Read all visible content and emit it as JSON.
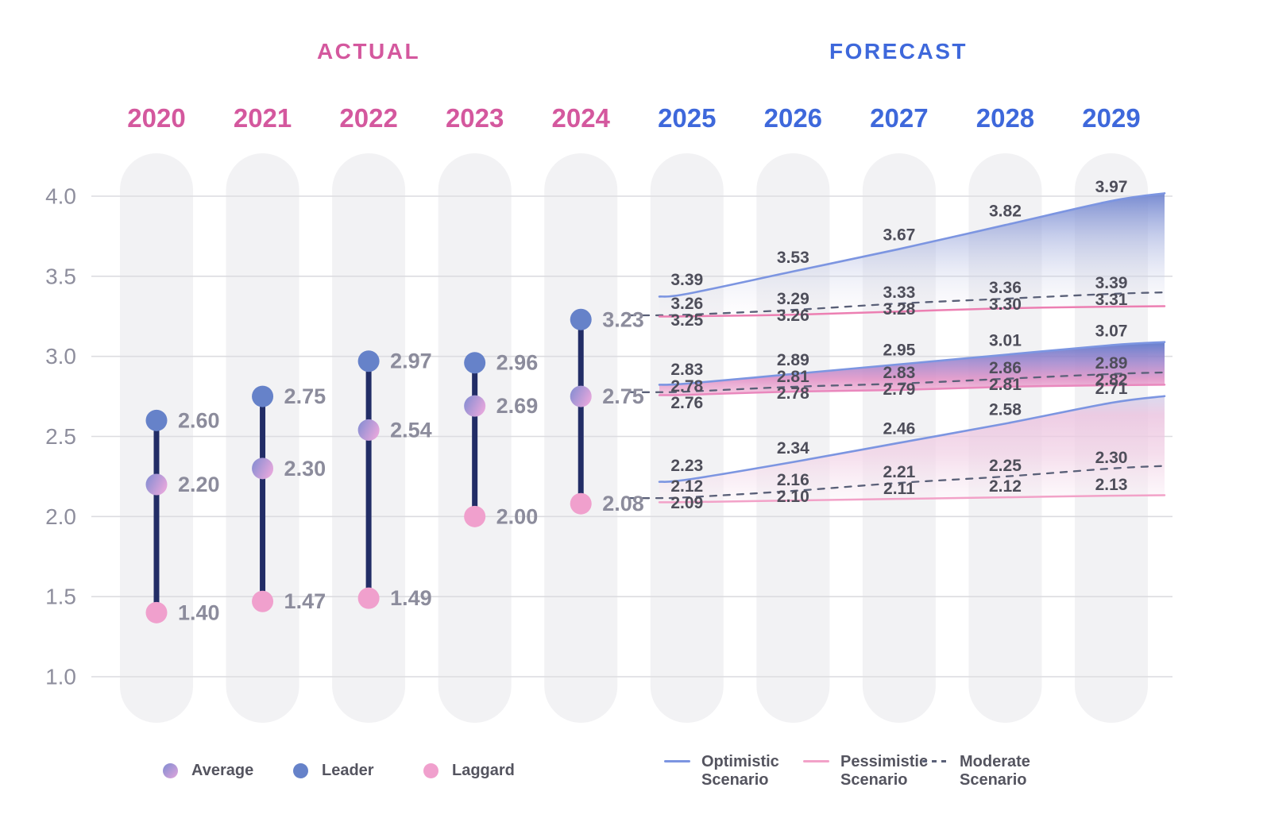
{
  "header": {
    "actual_label": "ACTUAL",
    "forecast_label": "FORECAST"
  },
  "y_axis": {
    "ticks": [
      "4.0",
      "3.5",
      "3.0",
      "2.5",
      "2.0",
      "1.5",
      "1.0"
    ]
  },
  "chart_data": {
    "type": "combo-dumbbell-and-forecast-bands",
    "title": "",
    "ylim": [
      1.0,
      4.0
    ],
    "grid": true,
    "actual": {
      "years": [
        "2020",
        "2021",
        "2022",
        "2023",
        "2024"
      ],
      "series": [
        {
          "name": "Leader",
          "values": [
            2.6,
            2.75,
            2.97,
            2.96,
            3.23
          ]
        },
        {
          "name": "Average",
          "values": [
            2.2,
            2.3,
            2.54,
            2.69,
            2.75
          ]
        },
        {
          "name": "Laggard",
          "values": [
            1.4,
            1.47,
            1.49,
            2.0,
            2.08
          ]
        }
      ]
    },
    "forecast": {
      "years": [
        "2025",
        "2026",
        "2027",
        "2028",
        "2029"
      ],
      "groups": [
        {
          "name": "Leader",
          "optimistic": [
            3.39,
            3.53,
            3.67,
            3.82,
            3.97
          ],
          "moderate": [
            3.26,
            3.29,
            3.33,
            3.36,
            3.39
          ],
          "pessimistic": [
            3.25,
            3.26,
            3.28,
            3.3,
            3.31
          ]
        },
        {
          "name": "Average",
          "optimistic": [
            2.83,
            2.89,
            2.95,
            3.01,
            3.07
          ],
          "moderate": [
            2.78,
            2.81,
            2.83,
            2.86,
            2.89
          ],
          "pessimistic": [
            2.76,
            2.78,
            2.79,
            2.81,
            2.82
          ]
        },
        {
          "name": "Laggard",
          "optimistic": [
            2.23,
            2.34,
            2.46,
            2.58,
            2.71
          ],
          "moderate": [
            2.12,
            2.16,
            2.21,
            2.25,
            2.3
          ],
          "pessimistic": [
            2.09,
            2.1,
            2.11,
            2.12,
            2.13
          ]
        }
      ]
    }
  },
  "legend": {
    "dot_items": [
      {
        "label": "Average",
        "swatch": "average-dot"
      },
      {
        "label": "Leader",
        "swatch": "leader-dot"
      },
      {
        "label": "Laggard",
        "swatch": "laggard-dot"
      }
    ],
    "scenario_items": [
      {
        "label_line1": "Optimistic",
        "label_line2": "Scenario",
        "swatch": "optimistic-line"
      },
      {
        "label_line1": "Pessimistic",
        "label_line2": "Scenario",
        "swatch": "pessimistic-line"
      },
      {
        "label_line1": "Moderate",
        "label_line2": "Scenario",
        "swatch": "moderate-line"
      }
    ]
  },
  "colors": {
    "actual_accent": "#D4589E",
    "forecast_accent": "#3E68DB",
    "leader_dot": "#6682C9",
    "laggard_dot": "#F0A0CD",
    "average_dot_from": "#7F8BD1",
    "average_dot_to": "#E2A6DC",
    "stem": "#222D66",
    "optimistic_line": "#7C95E1",
    "pessimistic_lines": [
      "#EC7FB2",
      "#E988BD",
      "#F2A2C8"
    ],
    "moderate_line": "#5A6078",
    "grid_line": "#DCDCE0",
    "pill_bg": "#F2F2F4",
    "axis_text": "#8E8E9D",
    "value_text": "#8C8C9C",
    "band_value_text": "#4E4E5A"
  }
}
